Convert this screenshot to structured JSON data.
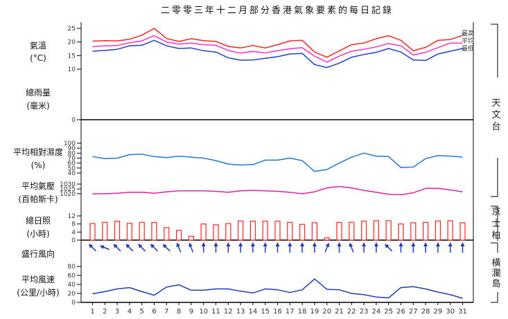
{
  "title": "二零零三年十二月部分香港氣象要素的每日記錄",
  "colors": {
    "temp_max": "#ff2020",
    "temp_mean": "#ff30c0",
    "temp_min": "#2040c8",
    "humidity": "#1e78d8",
    "pressure": "#e0209e",
    "sunshine": "#ff2020",
    "wind": "#1e3cb4",
    "axis": "#000000"
  },
  "panels": {
    "temperature": {
      "label1": "氣溫",
      "label2": "(°C)",
      "ticks": [
        "10",
        "15",
        "20",
        "25"
      ]
    },
    "rainfall": {
      "label1": "總雨量",
      "label2": "(毫米)",
      "ticks": [
        "0"
      ]
    },
    "humidity": {
      "label1": "平均相對濕度",
      "label2": "(%)",
      "ticks": [
        "40",
        "50",
        "60",
        "70",
        "80",
        "90",
        "100"
      ]
    },
    "pressure": {
      "label1": "平均氣壓",
      "label2": "(百帕斯卡)",
      "ticks": [
        "1020",
        "1025",
        "1030"
      ],
      "extra_tick": "1020"
    },
    "sunshine": {
      "label1": "總日照",
      "label2": "(小時)",
      "ticks": [
        "0",
        "4",
        "8",
        "12"
      ]
    },
    "wind_dir": {
      "label1": "盛行風向"
    },
    "wind_speed": {
      "label1": "平均風速",
      "label2": "(公里/小時)",
      "ticks": [
        "0",
        "20",
        "40",
        "60",
        "80"
      ]
    }
  },
  "legend": {
    "max": "最高",
    "mean": "平均",
    "min": "最低"
  },
  "stations": {
    "tianwentai": "天文台",
    "jingshibai": "京士柏",
    "henglandao": "橫瀾島"
  },
  "chart_data": {
    "type": "line",
    "x_label_days": [
      "1",
      "2",
      "3",
      "4",
      "5",
      "6",
      "7",
      "8",
      "9",
      "10",
      "11",
      "12",
      "13",
      "14",
      "15",
      "16",
      "17",
      "18",
      "19",
      "20",
      "21",
      "22",
      "23",
      "24",
      "25",
      "26",
      "27",
      "28",
      "29",
      "30",
      "31"
    ],
    "series": [
      {
        "name": "最高",
        "unit": "°C",
        "values": [
          20.3,
          20.5,
          20.4,
          21.0,
          22.5,
          25.0,
          21.3,
          20.2,
          21.2,
          20.5,
          20.2,
          18.4,
          17.8,
          18.7,
          17.8,
          19.0,
          20.4,
          20.6,
          16.3,
          14.4,
          16.7,
          19.0,
          19.6,
          21.2,
          22.3,
          20.6,
          16.8,
          18.0,
          20.6,
          20.9,
          22.4
        ]
      },
      {
        "name": "平均",
        "unit": "°C",
        "values": [
          18.3,
          18.6,
          18.7,
          19.7,
          20.4,
          22.3,
          20.0,
          19.2,
          19.6,
          19.0,
          18.8,
          16.9,
          15.9,
          16.5,
          16.0,
          16.8,
          17.5,
          17.9,
          14.8,
          12.6,
          14.8,
          16.6,
          17.3,
          18.2,
          19.4,
          18.6,
          15.2,
          16.2,
          17.9,
          19.6,
          19.6
        ]
      },
      {
        "name": "最低",
        "unit": "°C",
        "values": [
          16.6,
          16.9,
          17.3,
          18.6,
          18.8,
          20.6,
          18.6,
          17.6,
          17.8,
          16.8,
          16.3,
          14.2,
          13.3,
          13.4,
          14.0,
          14.6,
          15.6,
          15.8,
          11.7,
          10.6,
          12.2,
          14.4,
          15.4,
          16.2,
          17.6,
          16.3,
          13.4,
          13.2,
          15.6,
          16.6,
          17.6
        ]
      },
      {
        "name": "總雨量",
        "unit": "毫米",
        "values": [
          0,
          0,
          0,
          0,
          0,
          0,
          0,
          0,
          0,
          0,
          0,
          0,
          0,
          0,
          0,
          0,
          0,
          0,
          0,
          0,
          0,
          0,
          0,
          0,
          0,
          0,
          0,
          0,
          0,
          0,
          0
        ]
      },
      {
        "name": "平均相對濕度",
        "unit": "%",
        "values": [
          73,
          69,
          70,
          77,
          78,
          73,
          71,
          74,
          72,
          70,
          65,
          58,
          56,
          57,
          66,
          66,
          70,
          65,
          43,
          47,
          60,
          72,
          80,
          74,
          73,
          51,
          52,
          69,
          75,
          74,
          72
        ]
      },
      {
        "name": "平均氣壓",
        "unit": "百帕斯卡",
        "values": [
          1020.0,
          1020.0,
          1020.5,
          1021.5,
          1021.5,
          1020.5,
          1022.0,
          1023.0,
          1023.0,
          1023.0,
          1022.5,
          1021.5,
          1023.0,
          1023.5,
          1023.0,
          1022.5,
          1021.5,
          1020.0,
          1022.0,
          1026.0,
          1027.5,
          1026.0,
          1023.5,
          1021.5,
          1019.5,
          1019.0,
          1021.0,
          1025.5,
          1025.5,
          1024.0,
          1022.0
        ]
      },
      {
        "name": "總日照",
        "unit": "小時",
        "values": [
          8.2,
          8.8,
          9.4,
          8.3,
          8.8,
          8.7,
          6.2,
          4.8,
          1.9,
          8.0,
          7.6,
          8.2,
          9.5,
          9.4,
          9.4,
          9.4,
          8.8,
          7.8,
          8.6,
          1.1,
          8.8,
          8.8,
          9.4,
          9.6,
          9.6,
          8.0,
          8.6,
          8.8,
          9.5,
          9.6,
          8.6
        ]
      },
      {
        "name": "盛行風向",
        "unit": "度",
        "values": [
          315,
          292,
          315,
          315,
          315,
          315,
          315,
          338,
          338,
          0,
          0,
          0,
          0,
          0,
          0,
          0,
          0,
          0,
          0,
          22,
          0,
          338,
          0,
          0,
          315,
          0,
          0,
          0,
          0,
          0,
          0
        ]
      },
      {
        "name": "平均風速",
        "unit": "公里/小時",
        "values": [
          19,
          24,
          30,
          33,
          24,
          16,
          34,
          39,
          27,
          27,
          30,
          30,
          25,
          21,
          30,
          28,
          22,
          28,
          52,
          29,
          28,
          20,
          17,
          12,
          10,
          33,
          35,
          30,
          23,
          17,
          9
        ]
      }
    ]
  }
}
